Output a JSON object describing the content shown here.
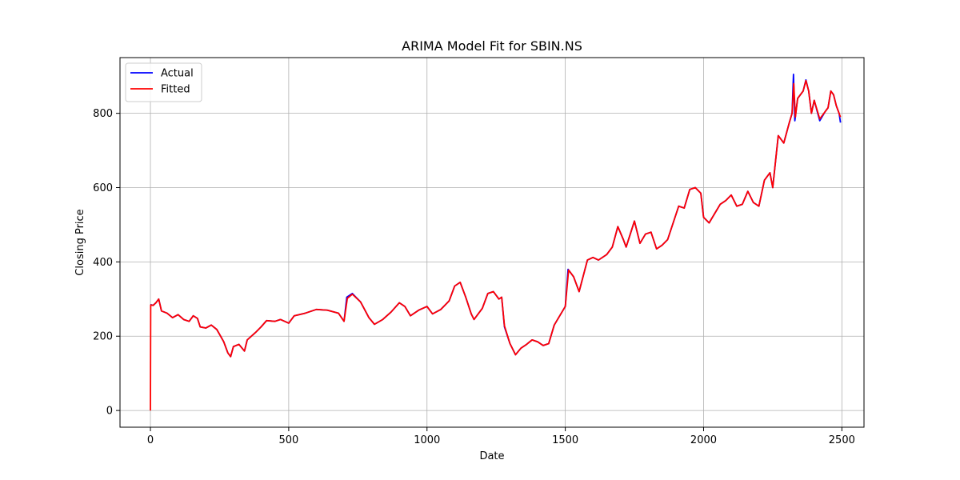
{
  "chart_data": {
    "type": "line",
    "title": "ARIMA Model Fit for SBIN.NS",
    "xlabel": "Date",
    "ylabel": "Closing Price",
    "xlim": [
      -110,
      2580
    ],
    "ylim": [
      -45,
      950
    ],
    "xticks": [
      0,
      500,
      1000,
      1500,
      2000,
      2500
    ],
    "yticks": [
      0,
      200,
      400,
      600,
      800
    ],
    "xtick_labels": [
      "0",
      "500",
      "1000",
      "1500",
      "2000",
      "2500"
    ],
    "ytick_labels": [
      "0",
      "200",
      "400",
      "600",
      "800"
    ],
    "grid": true,
    "legend_position": "top-left",
    "series": [
      {
        "name": "Actual",
        "color": "#0000ff",
        "points": [
          [
            0,
            285
          ],
          [
            10,
            283
          ],
          [
            20,
            290
          ],
          [
            30,
            300
          ],
          [
            40,
            268
          ],
          [
            60,
            262
          ],
          [
            80,
            250
          ],
          [
            100,
            258
          ],
          [
            120,
            245
          ],
          [
            140,
            240
          ],
          [
            155,
            255
          ],
          [
            170,
            248
          ],
          [
            180,
            225
          ],
          [
            200,
            222
          ],
          [
            220,
            230
          ],
          [
            240,
            218
          ],
          [
            250,
            205
          ],
          [
            265,
            185
          ],
          [
            280,
            155
          ],
          [
            290,
            145
          ],
          [
            300,
            172
          ],
          [
            320,
            178
          ],
          [
            340,
            160
          ],
          [
            350,
            190
          ],
          [
            380,
            210
          ],
          [
            400,
            225
          ],
          [
            420,
            242
          ],
          [
            450,
            240
          ],
          [
            470,
            245
          ],
          [
            500,
            235
          ],
          [
            520,
            255
          ],
          [
            560,
            262
          ],
          [
            600,
            272
          ],
          [
            640,
            270
          ],
          [
            680,
            262
          ],
          [
            700,
            240
          ],
          [
            710,
            305
          ],
          [
            730,
            315
          ],
          [
            760,
            292
          ],
          [
            790,
            250
          ],
          [
            810,
            232
          ],
          [
            840,
            245
          ],
          [
            870,
            265
          ],
          [
            900,
            290
          ],
          [
            920,
            280
          ],
          [
            940,
            255
          ],
          [
            970,
            270
          ],
          [
            1000,
            280
          ],
          [
            1020,
            260
          ],
          [
            1050,
            272
          ],
          [
            1080,
            295
          ],
          [
            1100,
            335
          ],
          [
            1120,
            345
          ],
          [
            1140,
            305
          ],
          [
            1160,
            260
          ],
          [
            1170,
            245
          ],
          [
            1200,
            275
          ],
          [
            1220,
            315
          ],
          [
            1240,
            320
          ],
          [
            1260,
            300
          ],
          [
            1270,
            305
          ],
          [
            1280,
            225
          ],
          [
            1300,
            180
          ],
          [
            1320,
            150
          ],
          [
            1340,
            168
          ],
          [
            1360,
            178
          ],
          [
            1380,
            190
          ],
          [
            1400,
            185
          ],
          [
            1420,
            175
          ],
          [
            1440,
            180
          ],
          [
            1460,
            230
          ],
          [
            1480,
            255
          ],
          [
            1500,
            280
          ],
          [
            1510,
            380
          ],
          [
            1530,
            360
          ],
          [
            1550,
            320
          ],
          [
            1580,
            405
          ],
          [
            1600,
            412
          ],
          [
            1620,
            405
          ],
          [
            1650,
            420
          ],
          [
            1670,
            440
          ],
          [
            1690,
            495
          ],
          [
            1710,
            460
          ],
          [
            1720,
            440
          ],
          [
            1750,
            510
          ],
          [
            1770,
            450
          ],
          [
            1790,
            475
          ],
          [
            1810,
            480
          ],
          [
            1830,
            435
          ],
          [
            1850,
            445
          ],
          [
            1870,
            460
          ],
          [
            1890,
            505
          ],
          [
            1910,
            550
          ],
          [
            1930,
            545
          ],
          [
            1950,
            595
          ],
          [
            1970,
            600
          ],
          [
            1990,
            585
          ],
          [
            2000,
            520
          ],
          [
            2020,
            505
          ],
          [
            2040,
            530
          ],
          [
            2060,
            555
          ],
          [
            2080,
            565
          ],
          [
            2100,
            580
          ],
          [
            2120,
            550
          ],
          [
            2140,
            555
          ],
          [
            2160,
            590
          ],
          [
            2180,
            560
          ],
          [
            2200,
            550
          ],
          [
            2220,
            620
          ],
          [
            2240,
            640
          ],
          [
            2250,
            600
          ],
          [
            2270,
            740
          ],
          [
            2290,
            720
          ],
          [
            2310,
            775
          ],
          [
            2320,
            800
          ],
          [
            2325,
            905
          ],
          [
            2330,
            780
          ],
          [
            2340,
            840
          ],
          [
            2360,
            860
          ],
          [
            2370,
            890
          ],
          [
            2380,
            860
          ],
          [
            2390,
            800
          ],
          [
            2400,
            835
          ],
          [
            2420,
            780
          ],
          [
            2440,
            805
          ],
          [
            2450,
            815
          ],
          [
            2460,
            860
          ],
          [
            2470,
            850
          ],
          [
            2480,
            820
          ],
          [
            2490,
            800
          ],
          [
            2495,
            775
          ]
        ]
      },
      {
        "name": "Fitted",
        "color": "#ff0000",
        "points": [
          [
            0,
            0
          ],
          [
            1,
            284
          ],
          [
            10,
            283
          ],
          [
            20,
            290
          ],
          [
            30,
            300
          ],
          [
            40,
            268
          ],
          [
            60,
            262
          ],
          [
            80,
            250
          ],
          [
            100,
            258
          ],
          [
            120,
            245
          ],
          [
            140,
            240
          ],
          [
            155,
            255
          ],
          [
            170,
            248
          ],
          [
            180,
            225
          ],
          [
            200,
            222
          ],
          [
            220,
            230
          ],
          [
            240,
            218
          ],
          [
            250,
            205
          ],
          [
            265,
            185
          ],
          [
            280,
            155
          ],
          [
            290,
            145
          ],
          [
            300,
            172
          ],
          [
            320,
            178
          ],
          [
            340,
            160
          ],
          [
            350,
            190
          ],
          [
            380,
            210
          ],
          [
            400,
            225
          ],
          [
            420,
            242
          ],
          [
            450,
            240
          ],
          [
            470,
            245
          ],
          [
            500,
            235
          ],
          [
            520,
            255
          ],
          [
            560,
            262
          ],
          [
            600,
            272
          ],
          [
            640,
            270
          ],
          [
            680,
            262
          ],
          [
            700,
            240
          ],
          [
            712,
            302
          ],
          [
            730,
            313
          ],
          [
            760,
            292
          ],
          [
            790,
            250
          ],
          [
            810,
            232
          ],
          [
            840,
            245
          ],
          [
            870,
            265
          ],
          [
            900,
            290
          ],
          [
            920,
            280
          ],
          [
            940,
            255
          ],
          [
            970,
            270
          ],
          [
            1000,
            280
          ],
          [
            1020,
            260
          ],
          [
            1050,
            272
          ],
          [
            1080,
            295
          ],
          [
            1100,
            335
          ],
          [
            1120,
            345
          ],
          [
            1140,
            305
          ],
          [
            1160,
            260
          ],
          [
            1170,
            245
          ],
          [
            1200,
            275
          ],
          [
            1220,
            315
          ],
          [
            1240,
            320
          ],
          [
            1260,
            300
          ],
          [
            1270,
            305
          ],
          [
            1280,
            228
          ],
          [
            1300,
            180
          ],
          [
            1320,
            150
          ],
          [
            1340,
            168
          ],
          [
            1360,
            178
          ],
          [
            1380,
            190
          ],
          [
            1400,
            185
          ],
          [
            1420,
            175
          ],
          [
            1440,
            180
          ],
          [
            1460,
            230
          ],
          [
            1480,
            255
          ],
          [
            1500,
            280
          ],
          [
            1512,
            378
          ],
          [
            1530,
            360
          ],
          [
            1550,
            320
          ],
          [
            1580,
            405
          ],
          [
            1600,
            412
          ],
          [
            1620,
            405
          ],
          [
            1650,
            420
          ],
          [
            1670,
            440
          ],
          [
            1690,
            495
          ],
          [
            1710,
            460
          ],
          [
            1720,
            440
          ],
          [
            1750,
            510
          ],
          [
            1770,
            450
          ],
          [
            1790,
            475
          ],
          [
            1810,
            480
          ],
          [
            1830,
            435
          ],
          [
            1850,
            445
          ],
          [
            1870,
            460
          ],
          [
            1890,
            505
          ],
          [
            1910,
            550
          ],
          [
            1930,
            545
          ],
          [
            1950,
            595
          ],
          [
            1970,
            600
          ],
          [
            1990,
            585
          ],
          [
            2000,
            520
          ],
          [
            2020,
            505
          ],
          [
            2040,
            530
          ],
          [
            2060,
            555
          ],
          [
            2080,
            565
          ],
          [
            2100,
            580
          ],
          [
            2120,
            550
          ],
          [
            2140,
            555
          ],
          [
            2160,
            590
          ],
          [
            2180,
            560
          ],
          [
            2200,
            550
          ],
          [
            2220,
            620
          ],
          [
            2240,
            640
          ],
          [
            2250,
            600
          ],
          [
            2270,
            740
          ],
          [
            2290,
            720
          ],
          [
            2310,
            775
          ],
          [
            2320,
            800
          ],
          [
            2326,
            880
          ],
          [
            2332,
            790
          ],
          [
            2340,
            840
          ],
          [
            2360,
            860
          ],
          [
            2370,
            888
          ],
          [
            2380,
            860
          ],
          [
            2390,
            800
          ],
          [
            2400,
            835
          ],
          [
            2420,
            785
          ],
          [
            2440,
            805
          ],
          [
            2450,
            815
          ],
          [
            2460,
            860
          ],
          [
            2470,
            850
          ],
          [
            2480,
            820
          ],
          [
            2490,
            800
          ],
          [
            2495,
            790
          ]
        ]
      }
    ]
  }
}
